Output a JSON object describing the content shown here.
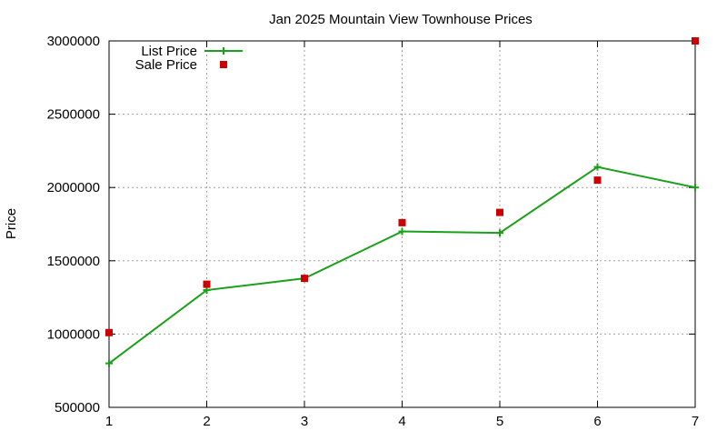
{
  "chart_data": {
    "type": "line",
    "title": "Jan 2025 Mountain View Townhouse Prices",
    "xlabel": "",
    "ylabel": "Price",
    "xlim": [
      1,
      7
    ],
    "ylim": [
      500000,
      3000000
    ],
    "x_ticks": [
      1,
      2,
      3,
      4,
      5,
      6,
      7
    ],
    "y_ticks": [
      500000,
      1000000,
      1500000,
      2000000,
      2500000,
      3000000
    ],
    "grid": true,
    "legend_position": "top-left",
    "series": [
      {
        "name": "List Price",
        "kind": "line-points",
        "color": "#1aa01a",
        "x": [
          1,
          2,
          3,
          4,
          5,
          6,
          7
        ],
        "y": [
          800000,
          1300000,
          1380000,
          1700000,
          1690000,
          2140000,
          2000000
        ]
      },
      {
        "name": "Sale Price",
        "kind": "points",
        "color": "#cc0000",
        "x": [
          1,
          2,
          3,
          4,
          5,
          6,
          7
        ],
        "y": [
          1010000,
          1340000,
          1380000,
          1760000,
          1830000,
          2050000,
          3000000
        ]
      }
    ]
  }
}
